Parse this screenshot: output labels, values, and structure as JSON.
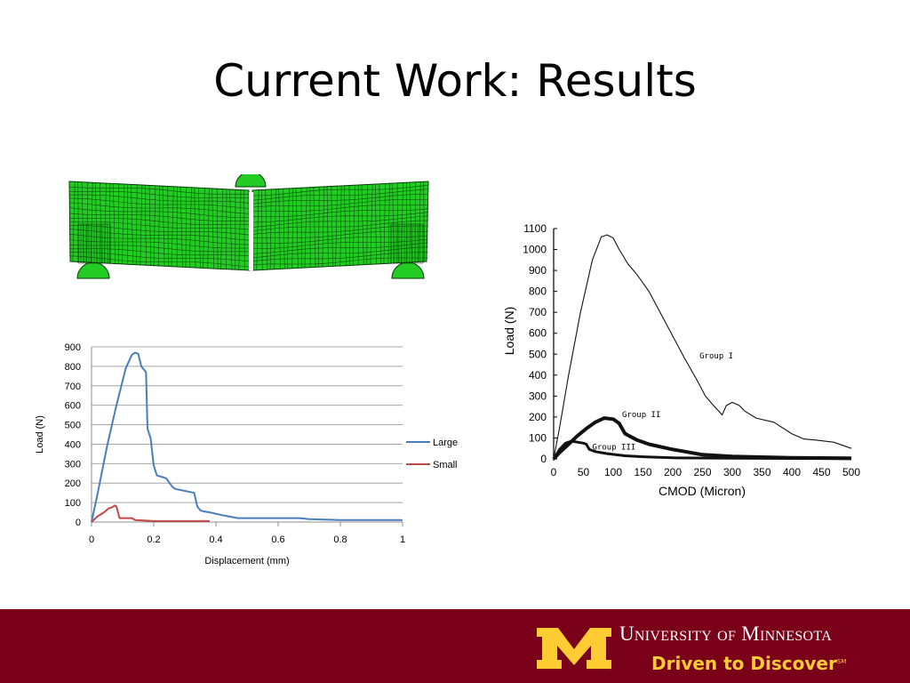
{
  "slide": {
    "title": "Current Work: Results"
  },
  "colors": {
    "mesh_fill": "#22cc22",
    "mesh_lines": "#0a3a0a",
    "footer": "#7a0019",
    "gold": "#ffcc33",
    "large": "#4a7ebb",
    "small": "#be4b48"
  },
  "footer": {
    "university": "University of Minnesota",
    "tagline": "Driven to Discover",
    "tagline_mark": "SM"
  },
  "chart_data": [
    {
      "type": "line",
      "xlabel": "Displacement (mm)",
      "ylabel": "Load (N)",
      "xlim": [
        0,
        1
      ],
      "ylim": [
        0,
        900
      ],
      "xticks": [
        0,
        0.2,
        0.4,
        0.6,
        0.8,
        1
      ],
      "yticks": [
        0,
        100,
        200,
        300,
        400,
        500,
        600,
        700,
        800,
        900
      ],
      "grid": "horizontal",
      "legend": "right",
      "series": [
        {
          "name": "Large",
          "x": [
            0,
            0.02,
            0.05,
            0.08,
            0.11,
            0.13,
            0.14,
            0.15,
            0.16,
            0.175,
            0.18,
            0.19,
            0.2,
            0.21,
            0.24,
            0.26,
            0.27,
            0.3,
            0.33,
            0.34,
            0.35,
            0.36,
            0.38,
            0.42,
            0.47,
            0.55,
            0.67,
            0.7,
            0.8,
            1.0
          ],
          "y": [
            0,
            150,
            390,
            600,
            790,
            860,
            870,
            865,
            800,
            770,
            480,
            430,
            290,
            240,
            225,
            180,
            170,
            160,
            150,
            80,
            60,
            55,
            50,
            35,
            20,
            20,
            20,
            15,
            10,
            10
          ]
        },
        {
          "name": "Small",
          "x": [
            0,
            0.02,
            0.04,
            0.055,
            0.065,
            0.075,
            0.08,
            0.09,
            0.12,
            0.13,
            0.14,
            0.2,
            0.3,
            0.38
          ],
          "y": [
            0,
            30,
            50,
            70,
            75,
            85,
            80,
            20,
            20,
            20,
            10,
            5,
            5,
            5
          ]
        }
      ]
    },
    {
      "type": "line",
      "xlabel": "CMOD (Micron)",
      "ylabel": "Load (N)",
      "xlim": [
        0,
        500
      ],
      "ylim": [
        0,
        1100
      ],
      "xticks": [
        0,
        50,
        100,
        150,
        200,
        250,
        300,
        350,
        400,
        450,
        500
      ],
      "yticks": [
        0,
        100,
        200,
        300,
        400,
        500,
        600,
        700,
        800,
        900,
        1000,
        1100
      ],
      "grid": "off",
      "legend": "none",
      "series": [
        {
          "label": "Group I",
          "x": [
            0,
            10,
            25,
            45,
            65,
            80,
            90,
            100,
            110,
            125,
            140,
            160,
            190,
            220,
            240,
            255,
            270,
            280,
            283,
            290,
            300,
            312,
            320,
            340,
            370,
            400,
            420,
            440,
            470,
            500
          ],
          "y": [
            0,
            150,
            400,
            700,
            950,
            1060,
            1070,
            1055,
            1000,
            930,
            880,
            800,
            640,
            480,
            380,
            300,
            250,
            220,
            210,
            255,
            270,
            255,
            230,
            195,
            175,
            120,
            95,
            90,
            80,
            50
          ],
          "label_at": [
            245,
            480
          ]
        },
        {
          "label": "Group II",
          "x": [
            0,
            10,
            25,
            40,
            55,
            70,
            85,
            100,
            110,
            120,
            140,
            160,
            200,
            250,
            300,
            400,
            500
          ],
          "y": [
            0,
            30,
            70,
            110,
            145,
            175,
            195,
            190,
            170,
            120,
            90,
            70,
            45,
            20,
            12,
            5,
            3
          ],
          "label_at": [
            115,
            200
          ]
        },
        {
          "label": "Group III",
          "x": [
            0,
            10,
            20,
            30,
            40,
            50,
            55,
            60,
            70,
            90,
            120,
            150,
            200,
            300,
            500
          ],
          "y": [
            0,
            45,
            75,
            85,
            80,
            75,
            70,
            45,
            35,
            25,
            15,
            10,
            5,
            3,
            1
          ],
          "label_at": [
            65,
            45
          ]
        }
      ]
    }
  ]
}
